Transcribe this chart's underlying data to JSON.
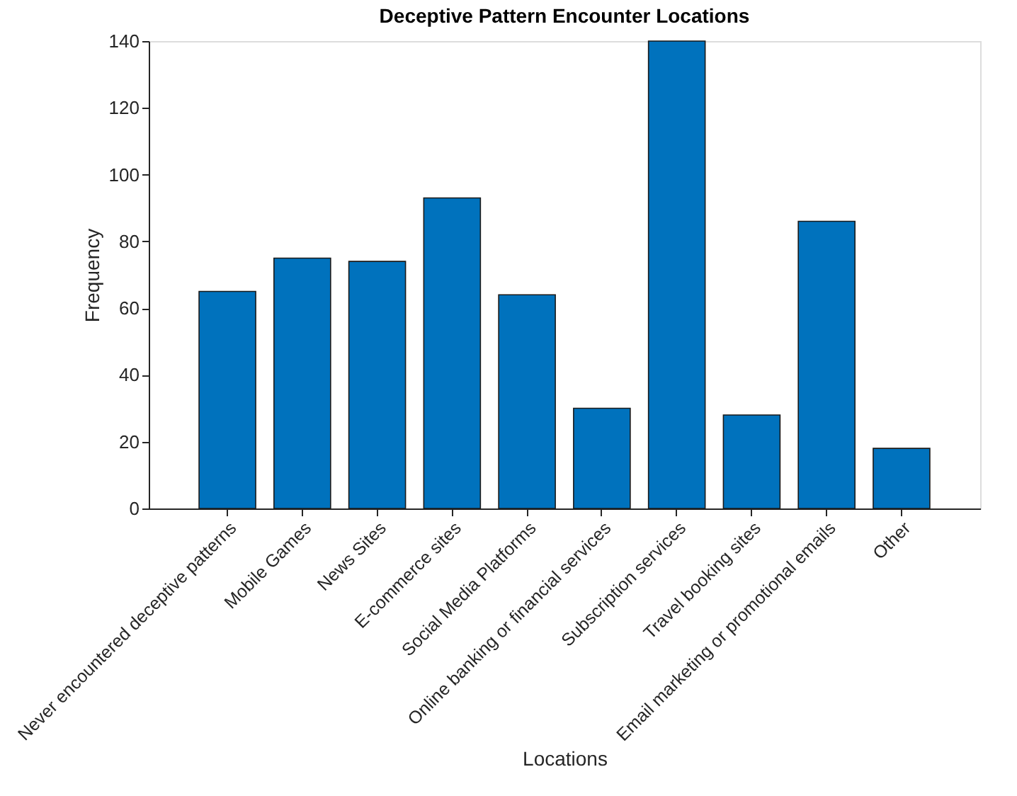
{
  "chart_data": {
    "type": "bar",
    "title": "Deceptive Pattern Encounter Locations",
    "xlabel": "Locations",
    "ylabel": "Frequency",
    "categories": [
      "Never encountered deceptive patterns",
      "Mobile Games",
      "News Sites",
      "E-commerce sites",
      "Social Media Platforms",
      "Online banking or financial services",
      "Subscription services",
      "Travel booking sites",
      "Email marketing or promotional emails",
      "Other"
    ],
    "values": [
      65,
      75,
      74,
      93,
      64,
      30,
      140,
      28,
      86,
      18
    ],
    "color": "#0072bd",
    "ylim": [
      0,
      140
    ],
    "yticks": [
      0,
      20,
      40,
      60,
      80,
      100,
      120,
      140
    ],
    "grid": false
  }
}
